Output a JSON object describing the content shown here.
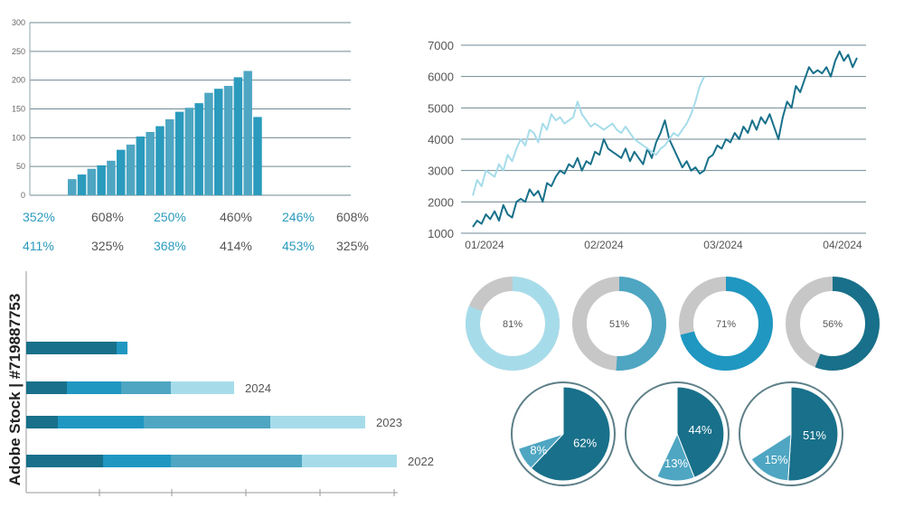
{
  "colors": {
    "grid": "#6f8a93",
    "axis": "#8fa3aa",
    "text": "#555555",
    "accent": "#2a9bbd",
    "light": "#a6dcea",
    "mid": "#4ea6c2",
    "blue": "#1f97c1",
    "dark": "#18708a",
    "gray": "#c7c7c7"
  },
  "watermark_id": "Adobe Stock | #719887753",
  "chart_data": [
    {
      "id": "bars",
      "type": "bar",
      "ylim": [
        0,
        300
      ],
      "yticks": [
        0,
        50,
        100,
        150,
        200,
        250,
        300
      ],
      "values": [
        28,
        36,
        46,
        52,
        60,
        79,
        88,
        102,
        110,
        120,
        132,
        145,
        152,
        160,
        178,
        185,
        190,
        205,
        216,
        136
      ],
      "bar_colors": [
        "#4ea6c2",
        "#2a9bbd"
      ],
      "grid": true
    },
    {
      "id": "percent-table",
      "type": "table",
      "rows": [
        [
          "352%",
          "608%",
          "250%",
          "460%",
          "246%",
          "608%"
        ],
        [
          "411%",
          "325%",
          "368%",
          "414%",
          "453%",
          "325%"
        ]
      ]
    },
    {
      "id": "lines",
      "type": "line",
      "ylim": [
        1000,
        7000
      ],
      "yticks": [
        1000,
        2000,
        3000,
        4000,
        5000,
        6000,
        7000
      ],
      "xticks": [
        "01/2024",
        "02/2024",
        "03/2024",
        "04/2024"
      ],
      "grid": true,
      "series": [
        {
          "color": "#18708a",
          "values": [
            1200,
            1400,
            1300,
            1600,
            1450,
            1700,
            1400,
            1900,
            1600,
            1500,
            2000,
            2100,
            2000,
            2400,
            2200,
            2350,
            2000,
            2600,
            2500,
            2800,
            3000,
            2900,
            3200,
            3100,
            3400,
            3000,
            3300,
            3200,
            3600,
            3500,
            4000,
            3700,
            3600,
            3500,
            3400,
            3700,
            3300,
            3600,
            3400,
            3200,
            3700,
            3400,
            3900,
            4200,
            4600,
            4000,
            3700,
            3400,
            3100,
            3300,
            3000,
            3100,
            2900,
            3000,
            3400,
            3500,
            3800,
            3700,
            4000,
            3900,
            4200,
            4000,
            4400,
            4200,
            4600,
            4300,
            4700,
            4500,
            4800,
            4400,
            4000,
            4700,
            5200,
            5000,
            5700,
            5500,
            5900,
            6300,
            6100,
            6200,
            6100,
            6300,
            6000,
            6500,
            6800,
            6500,
            6700,
            6300,
            6600
          ]
        },
        {
          "color": "#a6dcea",
          "values": [
            2200,
            2700,
            2500,
            3000,
            2900,
            2800,
            3200,
            3000,
            3500,
            3300,
            3700,
            4000,
            3800,
            4300,
            4200,
            3900,
            4500,
            4300,
            4800,
            4600,
            4700,
            4500,
            4600,
            4700,
            5200,
            4800,
            4600,
            4400,
            4500,
            4400,
            4300,
            4400,
            4500,
            4300,
            4200,
            4400,
            4200,
            4000,
            3900,
            3800,
            3700,
            3600,
            3500,
            3700,
            3800,
            4000,
            4200,
            4100,
            4300,
            4500,
            4800,
            5200,
            5700,
            6000
          ]
        }
      ]
    },
    {
      "id": "hbars",
      "type": "bar",
      "orientation": "horizontal",
      "categories": [
        "",
        "2024",
        "2023",
        "2022"
      ],
      "segment_colors": [
        "#18708a",
        "#1f97c1",
        "#4ea6c2",
        "#a6dcea"
      ],
      "rows": [
        [
          100,
          12,
          0,
          0
        ],
        [
          45,
          60,
          55,
          70
        ],
        [
          35,
          95,
          140,
          105
        ],
        [
          85,
          75,
          145,
          105
        ]
      ]
    },
    {
      "id": "donuts",
      "type": "pie",
      "style": "donut",
      "items": [
        {
          "label": "81%",
          "value": 81,
          "color": "#a6dcea"
        },
        {
          "label": "51%",
          "value": 51,
          "color": "#4ea6c2"
        },
        {
          "label": "71%",
          "value": 71,
          "color": "#1f97c1"
        },
        {
          "label": "56%",
          "value": 56,
          "color": "#18708a"
        }
      ]
    },
    {
      "id": "pies",
      "type": "pie",
      "items": [
        {
          "slices": [
            {
              "label": "62%",
              "value": 62,
              "color": "#18708a"
            },
            {
              "label": "8%",
              "value": 8,
              "color": "#4ea6c2"
            },
            {
              "label": "",
              "value": 30,
              "color": "#ffffff"
            }
          ]
        },
        {
          "slices": [
            {
              "label": "44%",
              "value": 44,
              "color": "#18708a"
            },
            {
              "label": "13%",
              "value": 13,
              "color": "#4ea6c2"
            },
            {
              "label": "",
              "value": 43,
              "color": "#ffffff"
            }
          ]
        },
        {
          "slices": [
            {
              "label": "51%",
              "value": 51,
              "color": "#18708a"
            },
            {
              "label": "15%",
              "value": 15,
              "color": "#4ea6c2"
            },
            {
              "label": "",
              "value": 34,
              "color": "#ffffff"
            }
          ]
        }
      ]
    }
  ]
}
